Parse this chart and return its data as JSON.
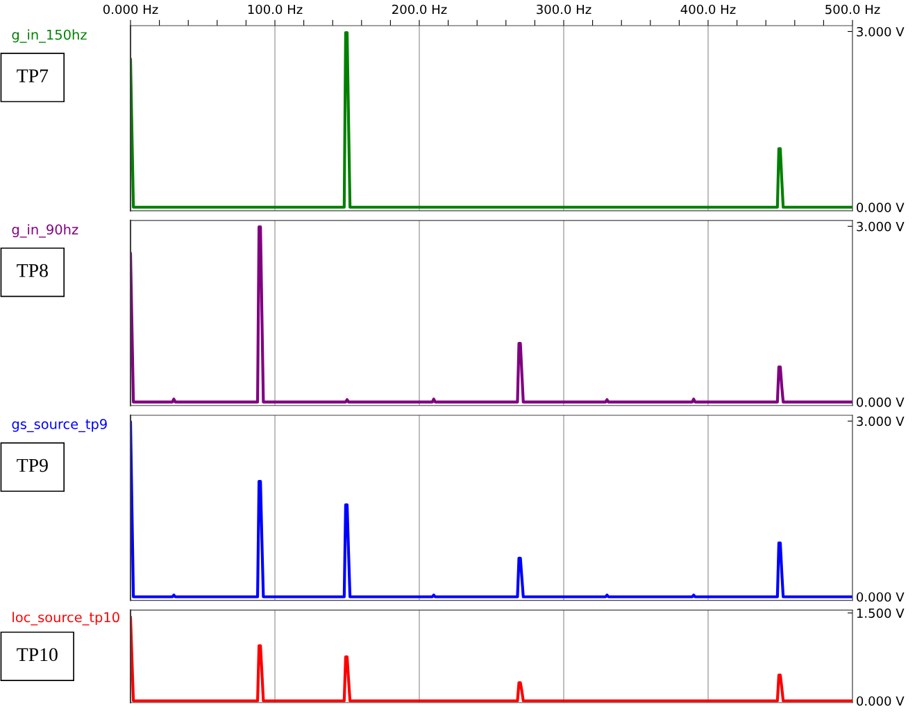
{
  "chart_data": [
    {
      "type": "line",
      "xlim": [
        0,
        500
      ],
      "ylim": [
        -0.06,
        3.1
      ],
      "xticks": [
        {
          "value": 0,
          "label": "0.000 Hz"
        },
        {
          "value": 20,
          "label": null
        },
        {
          "value": 40,
          "label": null
        },
        {
          "value": 60,
          "label": null
        },
        {
          "value": 80,
          "label": null
        },
        {
          "value": 100,
          "label": "100.0 Hz"
        },
        {
          "value": 120,
          "label": null
        },
        {
          "value": 140,
          "label": null
        },
        {
          "value": 160,
          "label": null
        },
        {
          "value": 180,
          "label": null
        },
        {
          "value": 200,
          "label": "200.0 Hz"
        },
        {
          "value": 220,
          "label": null
        },
        {
          "value": 240,
          "label": null
        },
        {
          "value": 260,
          "label": null
        },
        {
          "value": 280,
          "label": null
        },
        {
          "value": 300,
          "label": "300.0 Hz"
        },
        {
          "value": 320,
          "label": null
        },
        {
          "value": 340,
          "label": null
        },
        {
          "value": 360,
          "label": null
        },
        {
          "value": 380,
          "label": null
        },
        {
          "value": 400,
          "label": "400.0 Hz"
        },
        {
          "value": 420,
          "label": null
        },
        {
          "value": 440,
          "label": null
        },
        {
          "value": 460,
          "label": null
        },
        {
          "value": 480,
          "label": null
        },
        {
          "value": 500,
          "label": "500.0 Hz"
        }
      ],
      "yticks": [
        {
          "value": 0,
          "label": "0.000 V"
        },
        {
          "value": 3,
          "label": "3.000 V"
        }
      ],
      "grid": "x",
      "annotations": [
        "TP7"
      ],
      "series": [
        {
          "name": "g_in_150hz",
          "color": "#008000",
          "x": [
            0,
            1,
            2,
            148,
            149,
            150,
            151,
            152,
            448,
            449,
            450,
            451,
            452,
            500
          ],
          "values": [
            2.53,
            1.25,
            0,
            0,
            2.98,
            2.98,
            1.47,
            0,
            0,
            1.0,
            1.0,
            0.48,
            0,
            0
          ]
        }
      ]
    },
    {
      "type": "line",
      "xlim": [
        0,
        500
      ],
      "ylim": [
        -0.06,
        3.1
      ],
      "xticks": [
        0,
        100,
        200,
        300,
        400,
        500
      ],
      "yticks": [
        {
          "value": 0,
          "label": "0.000 V"
        },
        {
          "value": 3,
          "label": "3.000 V"
        }
      ],
      "grid": "x",
      "tick_labels": "y",
      "annotations": [
        "TP8"
      ],
      "series": [
        {
          "name": "g_in_90hz",
          "color": "#800080",
          "x": [
            0,
            1,
            2,
            29,
            30,
            31,
            88,
            89,
            90,
            91,
            92,
            149,
            150,
            151,
            209,
            210,
            211,
            268,
            269,
            270,
            271,
            272,
            329,
            330,
            331,
            389,
            390,
            391,
            448,
            449,
            450,
            451,
            452,
            500
          ],
          "values": [
            2.54,
            1.26,
            0,
            0,
            0.05,
            0,
            0,
            2.99,
            2.99,
            1.48,
            0,
            0,
            0.04,
            0,
            0,
            0.05,
            0,
            0,
            1.0,
            1.0,
            0.5,
            0,
            0,
            0.04,
            0,
            0,
            0.05,
            0,
            0,
            0.6,
            0.6,
            0.27,
            0,
            0
          ]
        }
      ]
    },
    {
      "type": "line",
      "xlim": [
        0,
        500
      ],
      "ylim": [
        -0.06,
        3.1
      ],
      "xticks": [
        0,
        100,
        200,
        300,
        400,
        500
      ],
      "yticks": [
        {
          "value": 0,
          "label": "0.000 V"
        },
        {
          "value": 3,
          "label": "3.000 V"
        }
      ],
      "grid": "x",
      "tick_labels": "y",
      "annotations": [
        "TP9"
      ],
      "series": [
        {
          "name": "gs_source_tp9",
          "color": "#0000ff",
          "x": [
            0,
            1,
            2,
            29,
            30,
            31,
            88,
            89,
            90,
            91,
            92,
            148,
            149,
            150,
            151,
            152,
            209,
            210,
            211,
            268,
            269,
            270,
            271,
            272,
            329,
            330,
            331,
            389,
            390,
            391,
            448,
            449,
            450,
            451,
            452,
            500
          ],
          "values": [
            2.99,
            1.48,
            0,
            0,
            0.03,
            0,
            0,
            1.97,
            1.97,
            0.95,
            0,
            0,
            1.57,
            1.57,
            0.76,
            0,
            0,
            0.03,
            0,
            0,
            0.66,
            0.66,
            0.33,
            0,
            0,
            0.03,
            0,
            0,
            0.03,
            0,
            0,
            0.92,
            0.92,
            0.43,
            0,
            0
          ]
        }
      ]
    },
    {
      "type": "line",
      "xlim": [
        0,
        500
      ],
      "ylim": [
        -0.03,
        1.55
      ],
      "xticks": [
        0,
        100,
        200,
        300,
        400,
        500
      ],
      "yticks": [
        {
          "value": 0,
          "label": "0.000 V"
        },
        {
          "value": 1.5,
          "label": "1.500 V"
        }
      ],
      "grid": "x",
      "tick_labels": "y",
      "annotations": [
        "TP10"
      ],
      "series": [
        {
          "name": "loc_source_tp10",
          "color": "#ff0000",
          "x": [
            0,
            1,
            2,
            88,
            89,
            90,
            91,
            92,
            148,
            149,
            150,
            151,
            152,
            268,
            269,
            270,
            271,
            272,
            448,
            449,
            450,
            451,
            452,
            500
          ],
          "values": [
            1.43,
            0.7,
            0,
            0,
            0.94,
            0.94,
            0.48,
            0,
            0,
            0.75,
            0.75,
            0.36,
            0,
            0,
            0.31,
            0.31,
            0.17,
            0,
            0,
            0.44,
            0.44,
            0.23,
            0,
            0
          ]
        }
      ]
    }
  ]
}
